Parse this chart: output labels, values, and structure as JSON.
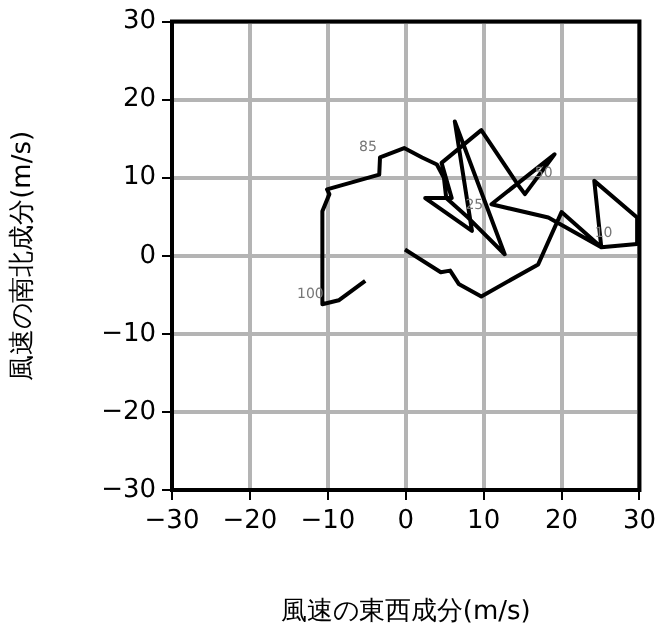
{
  "chart_data": {
    "type": "line",
    "xlabel": "風速の東西成分(m/s)",
    "ylabel": "風速の南北成分(m/s)",
    "xlim": [
      -30,
      30
    ],
    "ylim": [
      -30,
      30
    ],
    "xticks": [
      {
        "value": -30,
        "label": "−30"
      },
      {
        "value": -20,
        "label": "−20"
      },
      {
        "value": -10,
        "label": "−10"
      },
      0,
      10,
      20,
      30
    ],
    "yticks": [
      {
        "value": -30,
        "label": "−30"
      },
      {
        "value": -20,
        "label": "−20"
      },
      {
        "value": -10,
        "label": "−10"
      },
      0,
      10,
      20,
      30
    ],
    "grid": true,
    "marker": "none",
    "line_style": "solid",
    "legend": false,
    "series": [
      {
        "color": "#000000",
        "x": [
          -0.1,
          4.5,
          5.7,
          6.8,
          9.7,
          17.0,
          20.0,
          25.1,
          29.7,
          29.7,
          24.2,
          25.1,
          18.3,
          11.0,
          19.1,
          15.3,
          14.4,
          9.7,
          4.6,
          5.9,
          2.5,
          8.5,
          6.3,
          12.7,
          8.0,
          5.2,
          4.9,
          4.0,
          2.1,
          -0.2,
          -3.3,
          -3.4,
          -10.1,
          -9.8,
          -10.7,
          -10.7,
          -8.6,
          -5.2
        ],
        "values": [
          0.8,
          -2.1,
          -1.9,
          -3.6,
          -5.2,
          -1.1,
          5.6,
          1.1,
          1.5,
          4.9,
          9.6,
          1.1,
          4.9,
          6.6,
          13.0,
          7.9,
          9.1,
          16.1,
          11.9,
          7.4,
          7.4,
          3.2,
          17.2,
          0.2,
          4.9,
          7.4,
          10.0,
          11.7,
          12.6,
          13.8,
          12.6,
          10.4,
          8.5,
          7.9,
          5.7,
          -6.2,
          -5.7,
          -3.2
        ]
      }
    ],
    "annotations": [
      {
        "text": "10",
        "x": 25.4,
        "y": 2.9
      },
      {
        "text": "25",
        "x": 8.8,
        "y": 6.5
      },
      {
        "text": "50",
        "x": 17.7,
        "y": 10.6
      },
      {
        "text": "85",
        "x": -3.3,
        "y": 12.6
      },
      {
        "text": "100",
        "x": -10.7,
        "y": -6.2
      }
    ]
  }
}
